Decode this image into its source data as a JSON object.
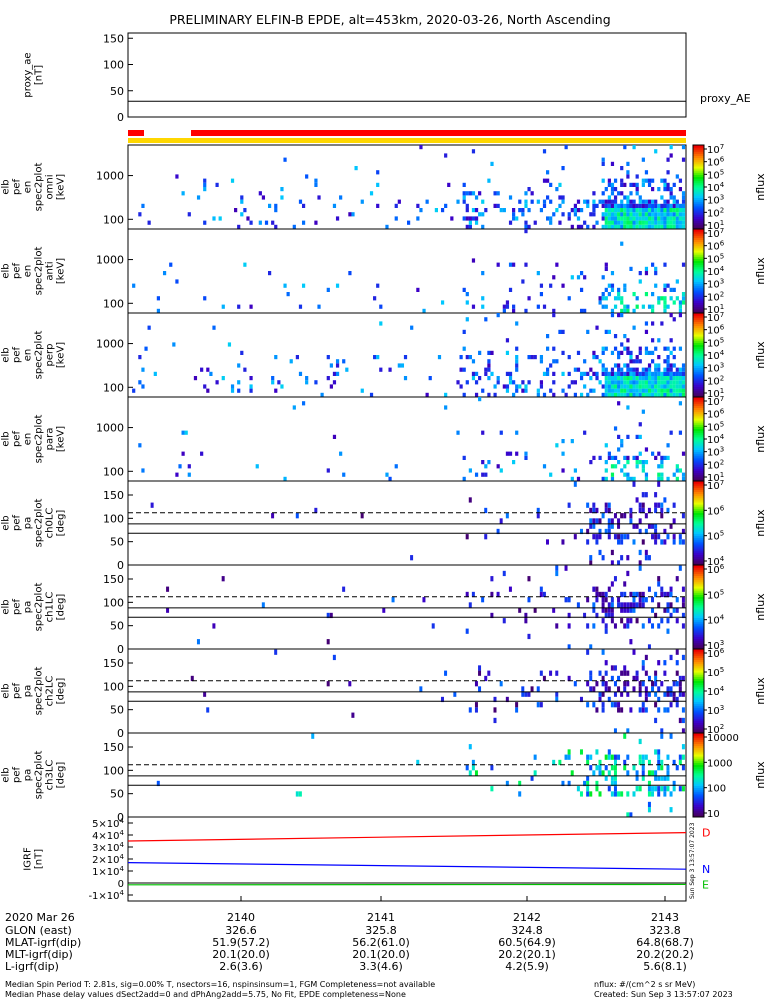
{
  "title": "PRELIMINARY ELFIN-B EPDE, alt=453km, 2020-03-26, North Ascending",
  "chart_data": {
    "type": "heatmap",
    "panels": [
      {
        "id": "proxy_ae",
        "ylabel": [
          "proxy_ae",
          "[nT]"
        ],
        "yticks": [
          "150",
          "100",
          "50",
          "0"
        ],
        "side_label": "proxy_AE",
        "line_value": 30
      },
      {
        "id": "omni",
        "ylabel": [
          "elb",
          "pef",
          "en",
          "spec2plot",
          "omni",
          "[keV]"
        ],
        "yticks": [
          "1000",
          "100"
        ],
        "cbar_label": "nflux",
        "cbar_ticks": [
          "10^7",
          "10^6",
          "10^5",
          "10^4",
          "10^3",
          "10^2",
          "10^1"
        ]
      },
      {
        "id": "anti",
        "ylabel": [
          "elb",
          "pef",
          "en",
          "spec2plot",
          "anti",
          "[keV]"
        ],
        "yticks": [
          "1000",
          "100"
        ],
        "cbar_label": "nflux",
        "cbar_ticks": [
          "10^7",
          "10^6",
          "10^5",
          "10^4",
          "10^3",
          "10^2",
          "10^1"
        ]
      },
      {
        "id": "perp",
        "ylabel": [
          "elb",
          "pef",
          "en",
          "spec2plot",
          "perp",
          "[keV]"
        ],
        "yticks": [
          "1000",
          "100"
        ],
        "cbar_label": "nflux",
        "cbar_ticks": [
          "10^7",
          "10^6",
          "10^5",
          "10^4",
          "10^3",
          "10^2",
          "10^1"
        ]
      },
      {
        "id": "para",
        "ylabel": [
          "elb",
          "pef",
          "en",
          "spec2plot",
          "para",
          "[keV]"
        ],
        "yticks": [
          "1000",
          "100"
        ],
        "cbar_label": "nflux",
        "cbar_ticks": [
          "10^7",
          "10^6",
          "10^5",
          "10^4",
          "10^3",
          "10^2",
          "10^1"
        ]
      },
      {
        "id": "ch0LC",
        "ylabel": [
          "elb",
          "pef",
          "pa",
          "spec2plot",
          "ch0LC",
          "[deg]"
        ],
        "yticks": [
          "150",
          "100",
          "50",
          "0"
        ],
        "cbar_label": "nflux",
        "cbar_ticks": [
          "10^7",
          "10^6",
          "10^5",
          "10^4"
        ],
        "lines": {
          "dashed": 112,
          "solid": [
            88,
            68
          ]
        }
      },
      {
        "id": "ch1LC",
        "ylabel": [
          "elb",
          "pef",
          "pa",
          "spec2plot",
          "ch1LC",
          "[deg]"
        ],
        "yticks": [
          "150",
          "100",
          "50",
          "0"
        ],
        "cbar_label": "nflux",
        "cbar_ticks": [
          "10^6",
          "10^5",
          "10^4",
          "10^3"
        ],
        "lines": {
          "dashed": 112,
          "solid": [
            88,
            68
          ]
        }
      },
      {
        "id": "ch2LC",
        "ylabel": [
          "elb",
          "pef",
          "pa",
          "spec2plot",
          "ch2LC",
          "[deg]"
        ],
        "yticks": [
          "150",
          "100",
          "50",
          "0"
        ],
        "cbar_label": "nflux",
        "cbar_ticks": [
          "10^6",
          "10^5",
          "10^4",
          "10^3",
          "10^2"
        ],
        "lines": {
          "dashed": 112,
          "solid": [
            88,
            68
          ]
        }
      },
      {
        "id": "ch3LC",
        "ylabel": [
          "elb",
          "pef",
          "pa",
          "spec2plot",
          "ch3LC",
          "[deg]"
        ],
        "yticks": [
          "150",
          "100",
          "50",
          "0"
        ],
        "cbar_label": "nflux",
        "cbar_ticks": [
          "10000",
          "1000",
          "100",
          "10"
        ],
        "lines": {
          "dashed": 112,
          "solid": [
            88,
            68
          ]
        }
      },
      {
        "id": "igrf",
        "ylabel": [
          "IGRF",
          "[nT]"
        ],
        "yticks": [
          "5x10^4",
          "4x10^4",
          "3x10^4",
          "2x10^4",
          "1x10^4",
          "0",
          "-1x10^4"
        ],
        "series": [
          {
            "name": "D",
            "color": "#ff0000",
            "values": [
              35000,
              42000
            ]
          },
          {
            "name": "N",
            "color": "#0000ff",
            "values": [
              17000,
              11500
            ]
          },
          {
            "name": "E",
            "color": "#00c000",
            "values": [
              -1500,
              -1200
            ]
          }
        ],
        "side_text": "Sun Sep  3 13:57:07 2023"
      }
    ],
    "x_ticks": [
      {
        "label": "2140",
        "glon": "326.6",
        "mlat": "51.9(57.2)",
        "mlt": "20.1(20.0)",
        "lval": "2.6(3.6)"
      },
      {
        "label": "2141",
        "glon": "325.8",
        "mlat": "56.2(61.0)",
        "mlt": "20.1(20.0)",
        "lval": "3.3(4.6)"
      },
      {
        "label": "2142",
        "glon": "324.8",
        "mlat": "60.5(64.9)",
        "mlt": "20.2(20.1)",
        "lval": "4.2(5.9)"
      },
      {
        "label": "2143",
        "glon": "323.8",
        "mlat": "64.8(68.7)",
        "mlt": "20.2(20.2)",
        "lval": "5.6(8.1)"
      }
    ],
    "x_row_labels": [
      "2020 Mar 26",
      "GLON (east)",
      "MLAT-igrf(dip)",
      "MLT-igrf(dip)",
      "L-igrf(dip)"
    ]
  },
  "footer": {
    "line1": "Median Spin Period T: 2.81s, sig=0.00% T, nsectors=16, nspinsinsum=1, FGM Completeness=not available",
    "line2": "Median Phase delay values dSect2add=0 and dPhAng2add=5.75, No Fit, EPDE completeness=None",
    "units": "nflux: #/(cm^2 s sr MeV)",
    "created": "Created: Sun Sep  3 13:57:07 2023"
  },
  "colors": {
    "red_bar": "#ff0000",
    "yellow_bar": "#ffd700"
  }
}
